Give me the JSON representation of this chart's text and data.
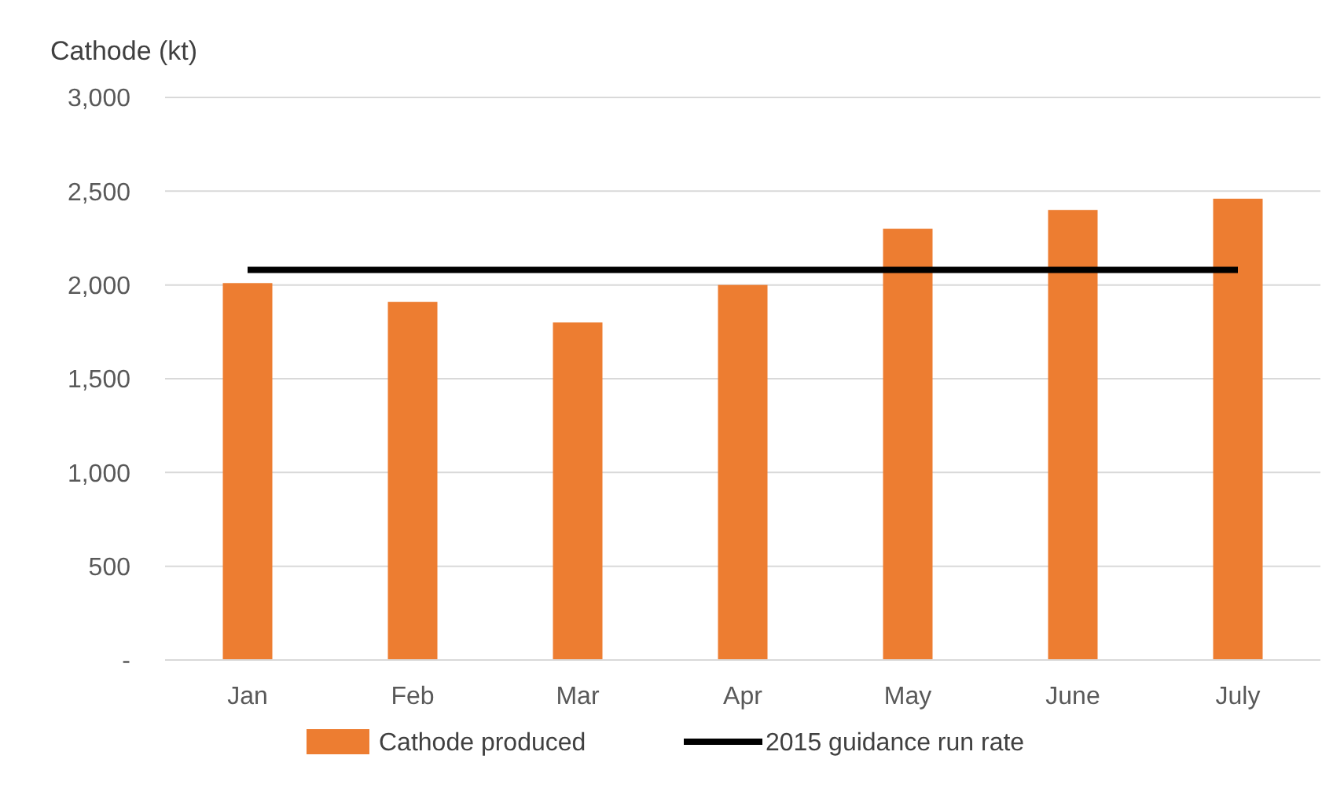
{
  "chart_data": {
    "type": "bar",
    "ylabel": "Cathode  (kt)",
    "categories": [
      "Jan",
      "Feb",
      "Mar",
      "Apr",
      "May",
      "June",
      "July"
    ],
    "series": [
      {
        "name": "Cathode produced",
        "color": "#ed7d31",
        "values": [
          2010,
          1910,
          1800,
          2000,
          2300,
          2400,
          2460
        ]
      },
      {
        "name": "2015 guidance run rate",
        "type": "line",
        "color": "#000000",
        "values": [
          2080,
          2080,
          2080,
          2080,
          2080,
          2080,
          2080
        ]
      }
    ],
    "ylim": [
      0,
      3000
    ],
    "yticks": [
      {
        "value": 0,
        "label": "-"
      },
      {
        "value": 500,
        "label": "500"
      },
      {
        "value": 1000,
        "label": "1,000"
      },
      {
        "value": 1500,
        "label": "1,500"
      },
      {
        "value": 2000,
        "label": "2,000"
      },
      {
        "value": 2500,
        "label": "2,500"
      },
      {
        "value": 3000,
        "label": "3,000"
      }
    ],
    "grid": "y",
    "legend": "bottom"
  }
}
